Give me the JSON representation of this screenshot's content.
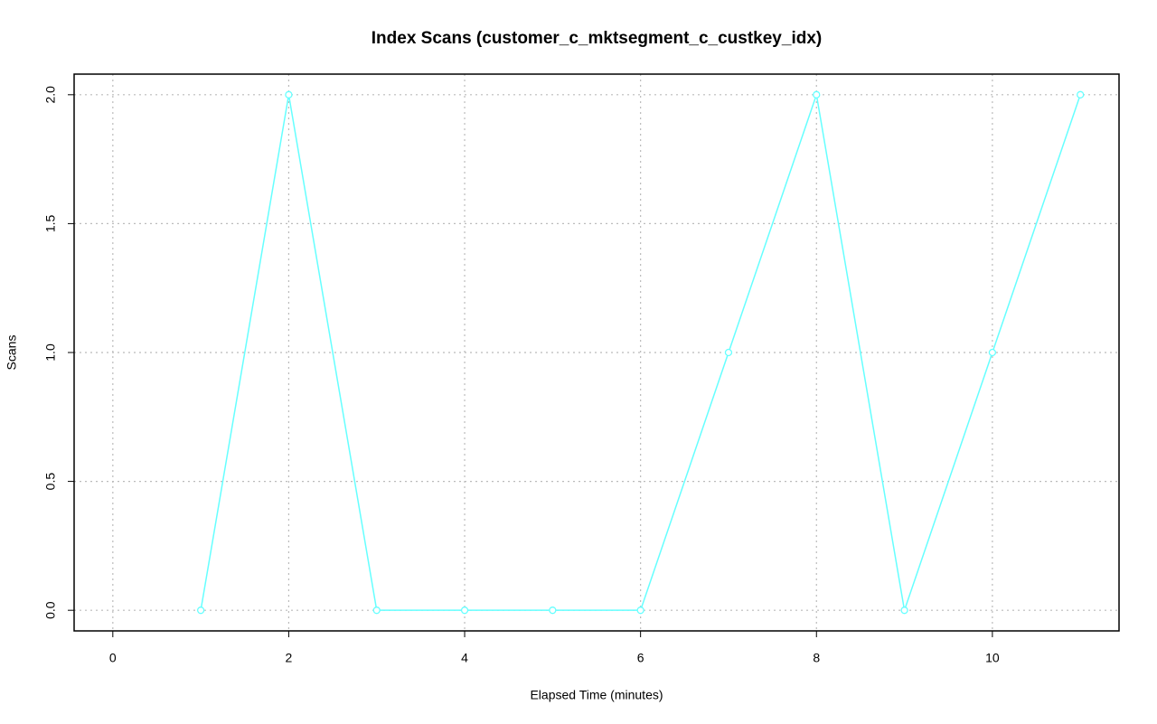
{
  "chart_data": {
    "type": "line",
    "title": "Index Scans (customer_c_mktsegment_c_custkey_idx)",
    "x_label": "Elapsed Time (minutes)",
    "y_label": "Scans",
    "x": [
      1,
      2,
      3,
      4,
      5,
      6,
      7,
      8,
      9,
      10,
      11
    ],
    "values": [
      0,
      2,
      0,
      0,
      0,
      0,
      1,
      2,
      0,
      1,
      2
    ],
    "color": "#66ffff",
    "xlim": [
      -0.44,
      11.44
    ],
    "xticks": [
      0,
      2,
      4,
      6,
      8,
      10
    ],
    "ylim": [
      -0.08,
      2.08
    ],
    "yticks": [
      {
        "value": 0,
        "label": "0.0"
      },
      {
        "value": 0.5,
        "label": "0.5"
      },
      {
        "value": 1,
        "label": "1.0"
      },
      {
        "value": 1.5,
        "label": "1.5"
      },
      {
        "value": 2,
        "label": "2.0"
      }
    ],
    "grid": true
  }
}
